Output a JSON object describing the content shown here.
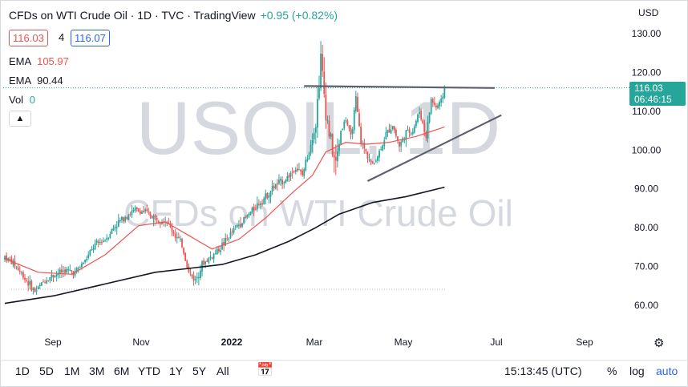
{
  "header": {
    "title": "CFDs on WTI Crude Oil · 1D · TVC · TradingView",
    "change": "+0.95 (+0.82%)"
  },
  "quote": {
    "bid": "116.03",
    "spread": "4",
    "ask": "116.07"
  },
  "indicators": [
    {
      "name": "EMA",
      "value": "105.97",
      "color": "#ef5350"
    },
    {
      "name": "EMA",
      "value": "90.44",
      "color": "#131722"
    },
    {
      "name": "Vol",
      "value": "0",
      "color": "#26a69a"
    }
  ],
  "currency": "USD",
  "watermark": {
    "symbol": "USOIL, 1D",
    "description": "CFDs on WTI Crude Oil"
  },
  "last_price": {
    "price": "116.03",
    "countdown": "06:46:15"
  },
  "timeframes": [
    "1D",
    "5D",
    "1M",
    "3M",
    "6M",
    "YTD",
    "1Y",
    "5Y",
    "All"
  ],
  "clock": "15:13:45 (UTC)",
  "scale_options": {
    "percent": "%",
    "log": "log",
    "auto": "auto"
  },
  "colors": {
    "up": "#26a69a",
    "down": "#ef5350",
    "ema_fast": "#ef5350",
    "ema_slow": "#131722",
    "trendline": "#5d606b",
    "accent": "#2962ff"
  },
  "chart_data": {
    "type": "candlestick",
    "symbol": "USOIL",
    "interval": "1D",
    "x_ticks": [
      "Sep",
      "Nov",
      "2022",
      "Mar",
      "May",
      "Jul",
      "Sep"
    ],
    "y_ticks": [
      "60.00",
      "70.00",
      "80.00",
      "90.00",
      "100.00",
      "110.00",
      "120.00",
      "130.00"
    ],
    "ylim": [
      55,
      134
    ],
    "close_path": [
      [
        0,
        72.5
      ],
      [
        6,
        70.5
      ],
      [
        12,
        67.0
      ],
      [
        18,
        63.5
      ],
      [
        24,
        66.5
      ],
      [
        30,
        68.0
      ],
      [
        36,
        69.0
      ],
      [
        42,
        68.5
      ],
      [
        48,
        71.5
      ],
      [
        54,
        75.5
      ],
      [
        60,
        77.0
      ],
      [
        66,
        80.5
      ],
      [
        72,
        83.0
      ],
      [
        78,
        84.5
      ],
      [
        84,
        84.0
      ],
      [
        90,
        82.5
      ],
      [
        96,
        82.0
      ],
      [
        102,
        78.0
      ],
      [
        106,
        75.5
      ],
      [
        110,
        68.5
      ],
      [
        114,
        66.5
      ],
      [
        118,
        70.5
      ],
      [
        122,
        72.0
      ],
      [
        126,
        73.5
      ],
      [
        132,
        76.5
      ],
      [
        138,
        80.0
      ],
      [
        144,
        82.5
      ],
      [
        150,
        85.5
      ],
      [
        156,
        88.0
      ],
      [
        162,
        91.0
      ],
      [
        168,
        92.5
      ],
      [
        174,
        95.5
      ],
      [
        178,
        93.5
      ],
      [
        182,
        100.0
      ],
      [
        186,
        107.0
      ],
      [
        189,
        123.5
      ],
      [
        192,
        110.0
      ],
      [
        195,
        102.0
      ],
      [
        198,
        96.0
      ],
      [
        201,
        105.0
      ],
      [
        204,
        108.0
      ],
      [
        207,
        103.0
      ],
      [
        210,
        113.0
      ],
      [
        213,
        102.0
      ],
      [
        216,
        99.5
      ],
      [
        220,
        96.0
      ],
      [
        224,
        99.5
      ],
      [
        228,
        104.0
      ],
      [
        232,
        106.5
      ],
      [
        236,
        101.0
      ],
      [
        240,
        104.5
      ],
      [
        244,
        105.0
      ],
      [
        248,
        110.0
      ],
      [
        252,
        103.5
      ],
      [
        255,
        113.0
      ],
      [
        258,
        111.0
      ],
      [
        261,
        112.5
      ],
      [
        263,
        116.0
      ]
    ],
    "ema_fast": [
      [
        0,
        72.0
      ],
      [
        20,
        68.5
      ],
      [
        40,
        68.0
      ],
      [
        60,
        73.0
      ],
      [
        80,
        80.5
      ],
      [
        96,
        81.5
      ],
      [
        110,
        78.0
      ],
      [
        124,
        74.5
      ],
      [
        140,
        77.0
      ],
      [
        156,
        82.5
      ],
      [
        172,
        89.0
      ],
      [
        184,
        93.5
      ],
      [
        192,
        99.5
      ],
      [
        204,
        102.0
      ],
      [
        216,
        101.5
      ],
      [
        230,
        102.0
      ],
      [
        246,
        103.5
      ],
      [
        263,
        105.97
      ]
    ],
    "ema_slow": [
      [
        0,
        60.5
      ],
      [
        30,
        62.5
      ],
      [
        60,
        65.5
      ],
      [
        90,
        68.5
      ],
      [
        110,
        69.5
      ],
      [
        130,
        70.5
      ],
      [
        150,
        73.0
      ],
      [
        170,
        76.5
      ],
      [
        186,
        80.0
      ],
      [
        200,
        83.5
      ],
      [
        220,
        86.5
      ],
      [
        240,
        88.0
      ],
      [
        263,
        90.44
      ]
    ],
    "trendlines": [
      {
        "from": [
          179,
          116.5
        ],
        "to": [
          293,
          116.0
        ]
      },
      {
        "from": [
          217,
          92.0
        ],
        "to": [
          297,
          109.0
        ]
      }
    ],
    "x_range": [
      0,
      305
    ]
  }
}
